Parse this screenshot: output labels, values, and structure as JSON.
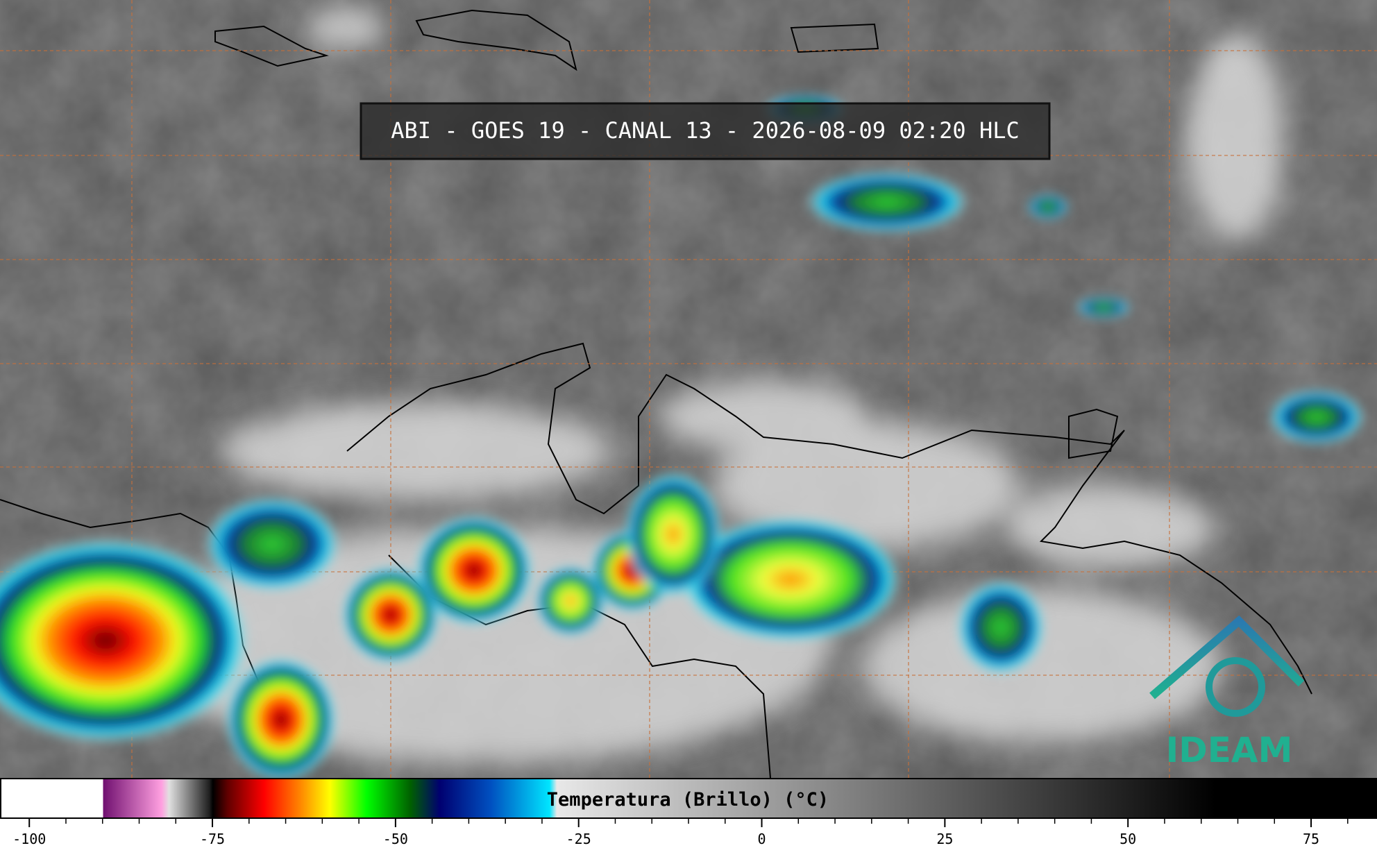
{
  "header": {
    "title": "ABI - GOES 19 - CANAL 13 - 2026-08-09 02:20 HLC"
  },
  "logo": {
    "text": "IDEAM"
  },
  "colorbar": {
    "label": "Temperatura (Brillo) (°C)",
    "lim": [
      -104,
      84
    ],
    "ticks": [
      -100,
      -75,
      -50,
      -25,
      0,
      25,
      50,
      75
    ],
    "minor_ticks": [
      -95,
      -90,
      -85,
      -80,
      -70,
      -65,
      -60,
      -55,
      -45,
      -40,
      -35,
      -30,
      -20,
      -15,
      -10,
      -5,
      5,
      10,
      15,
      20,
      30,
      35,
      40,
      45,
      55,
      60,
      65,
      70,
      80
    ],
    "colormap": [
      {
        "value": -104,
        "color": "#ffffff"
      },
      {
        "value": -90,
        "color": "#ffffff"
      },
      {
        "value": -90,
        "color": "#701070"
      },
      {
        "value": -82,
        "color": "#ffa0e0"
      },
      {
        "value": -81,
        "color": "#e0e0e0"
      },
      {
        "value": -75.5,
        "color": "#202020"
      },
      {
        "value": -75,
        "color": "#000000"
      },
      {
        "value": -73,
        "color": "#600000"
      },
      {
        "value": -68,
        "color": "#ff0000"
      },
      {
        "value": -63,
        "color": "#ff8800"
      },
      {
        "value": -59,
        "color": "#ffff00"
      },
      {
        "value": -54,
        "color": "#00ff00"
      },
      {
        "value": -48,
        "color": "#006000"
      },
      {
        "value": -44,
        "color": "#000070"
      },
      {
        "value": -37,
        "color": "#0050c0"
      },
      {
        "value": -29,
        "color": "#00e5ff"
      },
      {
        "value": -28,
        "color": "#e8e8e8"
      },
      {
        "value": 62,
        "color": "#000000"
      },
      {
        "value": 84,
        "color": "#000000"
      }
    ]
  }
}
